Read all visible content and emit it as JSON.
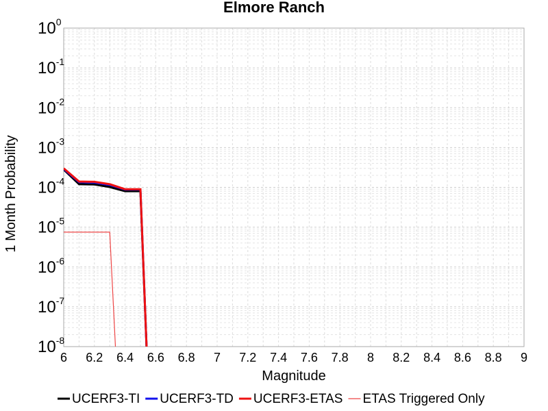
{
  "chart_data": {
    "type": "line",
    "title": "Elmore Ranch",
    "xlabel": "Magnitude",
    "ylabel": "1 Month Probability",
    "xlim": [
      6,
      9
    ],
    "ylim": [
      1e-08,
      1
    ],
    "yscale": "log",
    "grid": true,
    "legend_position": "bottom",
    "x_ticks": [
      "6",
      "6.2",
      "6.4",
      "6.6",
      "6.8",
      "7",
      "7.2",
      "7.4",
      "7.6",
      "7.8",
      "8",
      "8.2",
      "8.4",
      "8.6",
      "8.8",
      "9"
    ],
    "y_ticks": [
      {
        "base": "10",
        "exp": "0"
      },
      {
        "base": "10",
        "exp": "-1"
      },
      {
        "base": "10",
        "exp": "-2"
      },
      {
        "base": "10",
        "exp": "-3"
      },
      {
        "base": "10",
        "exp": "-4"
      },
      {
        "base": "10",
        "exp": "-5"
      },
      {
        "base": "10",
        "exp": "-6"
      },
      {
        "base": "10",
        "exp": "-7"
      },
      {
        "base": "10",
        "exp": "-8"
      }
    ],
    "series": [
      {
        "name": "UCERF3-TI",
        "color": "#000000",
        "width": 3,
        "x": [
          6.0,
          6.1,
          6.2,
          6.3,
          6.4,
          6.5,
          6.55
        ],
        "y": [
          0.00028,
          0.00012,
          0.000118,
          0.000102,
          8e-05,
          8e-05,
          1e-09
        ]
      },
      {
        "name": "UCERF3-TD",
        "color": "#1010ee",
        "width": 3,
        "x": [
          6.0,
          6.1,
          6.2,
          6.3,
          6.4,
          6.5,
          6.55
        ],
        "y": [
          0.00029,
          0.000135,
          0.000132,
          0.000115,
          8.8e-05,
          8.8e-05,
          1e-09
        ]
      },
      {
        "name": "UCERF3-ETAS",
        "color": "#ee1111",
        "width": 3,
        "x": [
          6.0,
          6.1,
          6.2,
          6.3,
          6.4,
          6.5,
          6.55
        ],
        "y": [
          0.0003,
          0.00014,
          0.000138,
          0.00012,
          9e-05,
          9e-05,
          1e-09
        ]
      },
      {
        "name": "ETAS Triggered Only",
        "color": "#ee4444",
        "width": 1.2,
        "x": [
          6.0,
          6.1,
          6.2,
          6.3,
          6.35
        ],
        "y": [
          7.5e-06,
          7.5e-06,
          7.5e-06,
          7.5e-06,
          1e-09
        ]
      }
    ]
  }
}
